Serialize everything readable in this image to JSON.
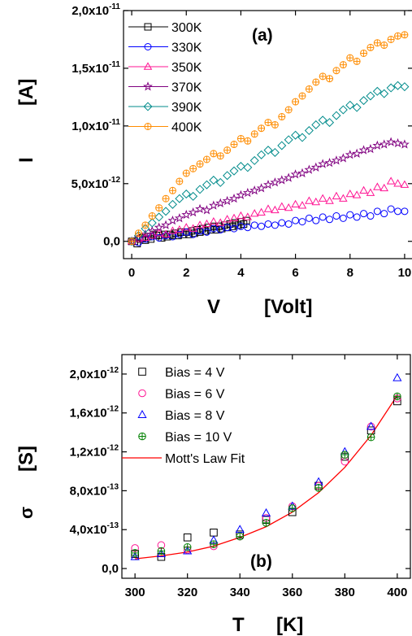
{
  "chart_data": [
    {
      "type": "scatter",
      "panel_label": "(a)",
      "xlabel": "V",
      "xlabel_unit": "[Volt]",
      "ylabel": "I",
      "ylabel_unit": "[A]",
      "xlim": [
        -0.3,
        10.3
      ],
      "ylim": [
        -1.5e-12,
        2e-11
      ],
      "x_ticks": [
        0,
        2,
        4,
        6,
        8,
        10
      ],
      "x_tick_labels": [
        "0",
        "2",
        "4",
        "6",
        "8",
        "10"
      ],
      "y_ticks": [
        0,
        5e-12,
        1e-11,
        1.5e-11,
        2e-11
      ],
      "y_tick_labels": [
        {
          "mant": "0,0",
          "exp": ""
        },
        {
          "mant": "5,0x10",
          "exp": "-12"
        },
        {
          "mant": "1,0x10",
          "exp": "-11"
        },
        {
          "mant": "1,5x10",
          "exp": "-11"
        },
        {
          "mant": "2,0x10",
          "exp": "-11"
        }
      ],
      "legend_position": "top-left",
      "series": [
        {
          "name": "300K",
          "marker": "square",
          "color": "#000000",
          "v_step": 0.1,
          "values": [
            0.0,
            0.0,
            -2e-13,
            2e-13,
            3e-13,
            1e-13,
            4e-13,
            2e-13,
            6e-13,
            5e-13,
            5e-13,
            3e-13,
            6e-13,
            4e-13,
            6e-13,
            5e-13,
            7e-13,
            5e-13,
            8e-13,
            6e-13,
            8e-13,
            6e-13,
            9e-13,
            7e-13,
            1e-12,
            8e-13,
            1.1e-12,
            9e-13,
            1.2e-12,
            1e-12,
            1.3e-12,
            1e-12,
            1.3e-12,
            1.1e-12,
            1.4e-12,
            1.2e-12,
            1.5e-12,
            1.3e-12,
            1.6e-12,
            1.4e-12,
            1.7e-12,
            1.5e-12,
            1.8e-12
          ]
        },
        {
          "name": "330K",
          "marker": "circle",
          "color": "#0000ff",
          "v_step": 0.25,
          "values": [
            0.0,
            -1e-13,
            2e-13,
            4e-13,
            3e-13,
            5e-13,
            4e-13,
            6e-13,
            8e-13,
            6e-13,
            9e-13,
            8e-13,
            1.1e-12,
            1e-12,
            1.2e-12,
            1.1e-12,
            1.3e-12,
            1.2e-12,
            1.4e-12,
            1.3e-12,
            1.5e-12,
            1.4e-12,
            1.6e-12,
            1.5e-12,
            1.8e-12,
            1.7e-12,
            2e-12,
            1.8e-12,
            2.1e-12,
            1.9e-12,
            2.2e-12,
            2e-12,
            2.3e-12,
            2.1e-12,
            2.4e-12,
            2.2e-12,
            2.6e-12,
            2.4e-12,
            2.8e-12,
            2.6e-12,
            2.6e-12
          ]
        },
        {
          "name": "350K",
          "marker": "triangle",
          "color": "#ff1493",
          "v_step": 0.25,
          "values": [
            0.0,
            2e-13,
            3e-13,
            5e-13,
            7e-13,
            6e-13,
            9e-13,
            1e-12,
            1.2e-12,
            1.1e-12,
            1.4e-12,
            1.5e-12,
            1.7e-12,
            1.6e-12,
            1.9e-12,
            2e-12,
            2.2e-12,
            2.1e-12,
            2.4e-12,
            2.5e-12,
            2.8e-12,
            2.7e-12,
            3e-12,
            2.9e-12,
            3.2e-12,
            3.1e-12,
            3.5e-12,
            3.4e-12,
            3.7e-12,
            3.5e-12,
            3.9e-12,
            3.7e-12,
            4.1e-12,
            4e-12,
            4.4e-12,
            4.2e-12,
            4.7e-12,
            4.6e-12,
            5.2e-12,
            5e-12,
            4.9e-12
          ]
        },
        {
          "name": "370K",
          "marker": "star",
          "color": "#800080",
          "v_step": 0.25,
          "values": [
            0.0,
            3e-13,
            6e-13,
            9e-13,
            1.2e-12,
            1.4e-12,
            1.8e-12,
            2e-12,
            2.3e-12,
            2.5e-12,
            2.8e-12,
            2.7e-12,
            3.1e-12,
            3.3e-12,
            3.5e-12,
            3.7e-12,
            4e-12,
            4.2e-12,
            4.4e-12,
            4.6e-12,
            4.9e-12,
            5.1e-12,
            5.3e-12,
            5.5e-12,
            5.8e-12,
            5.9e-12,
            6.2e-12,
            6.4e-12,
            6.7e-12,
            6.8e-12,
            7e-12,
            7.2e-12,
            7.5e-12,
            7.6e-12,
            7.9e-12,
            8e-12,
            8.3e-12,
            8.4e-12,
            8.6e-12,
            8.5e-12,
            8.4e-12
          ]
        },
        {
          "name": "390K",
          "marker": "diamond",
          "color": "#008b8b",
          "v_step": 0.25,
          "values": [
            0.0,
            5e-13,
            1.1e-12,
            1.6e-12,
            2.1e-12,
            2.6e-12,
            3.2e-12,
            3.7e-12,
            4.1e-12,
            3.9e-12,
            4.5e-12,
            4.9e-12,
            5.3e-12,
            5.1e-12,
            5.7e-12,
            6.1e-12,
            6.5e-12,
            6.4e-12,
            7e-12,
            7.5e-12,
            7.9e-12,
            7.7e-12,
            8.3e-12,
            8.8e-12,
            9.2e-12,
            9e-12,
            9.6e-12,
            1.01e-11,
            1.05e-11,
            1.03e-11,
            1.09e-11,
            1.14e-11,
            1.18e-11,
            1.16e-11,
            1.22e-11,
            1.26e-11,
            1.3e-11,
            1.28e-11,
            1.33e-11,
            1.35e-11,
            1.34e-11
          ]
        },
        {
          "name": "400K",
          "marker": "circle-plus",
          "color": "#ff8c00",
          "v_step": 0.25,
          "values": [
            0.0,
            7e-13,
            1.4e-12,
            2.2e-12,
            2.9e-12,
            3.7e-12,
            4.4e-12,
            5.2e-12,
            5.9e-12,
            6.3e-12,
            6.7e-12,
            7.1e-12,
            7.6e-12,
            7.4e-12,
            7.9e-12,
            8.4e-12,
            8.9e-12,
            8.7e-12,
            9.3e-12,
            9.8e-12,
            1.03e-11,
            1.01e-11,
            1.08e-11,
            1.14e-11,
            1.21e-11,
            1.26e-11,
            1.32e-11,
            1.38e-11,
            1.43e-11,
            1.41e-11,
            1.48e-11,
            1.53e-11,
            1.59e-11,
            1.56e-11,
            1.63e-11,
            1.68e-11,
            1.72e-11,
            1.7e-11,
            1.75e-11,
            1.78e-11,
            1.79e-11
          ]
        }
      ]
    },
    {
      "type": "scatter",
      "panel_label": "(b)",
      "xlabel": "T",
      "xlabel_unit": "[K]",
      "ylabel": "σ",
      "ylabel_unit": "[S]",
      "xlim": [
        295,
        405
      ],
      "ylim": [
        -1e-13,
        2.2e-12
      ],
      "x_ticks": [
        300,
        320,
        340,
        360,
        380,
        400
      ],
      "x_tick_labels": [
        "300",
        "320",
        "340",
        "360",
        "380",
        "400"
      ],
      "y_ticks": [
        0,
        4e-13,
        8e-13,
        1.2e-12,
        1.6e-12,
        2e-12
      ],
      "y_tick_labels": [
        {
          "mant": "0,0",
          "exp": ""
        },
        {
          "mant": "4,0x10",
          "exp": "-13"
        },
        {
          "mant": "8,0x10",
          "exp": "-13"
        },
        {
          "mant": "1,2x10",
          "exp": "-12"
        },
        {
          "mant": "1,6x10",
          "exp": "-12"
        },
        {
          "mant": "2,0x10",
          "exp": "-12"
        }
      ],
      "legend_position": "top-left",
      "x": [
        300,
        310,
        320,
        330,
        340,
        350,
        360,
        370,
        380,
        390,
        400
      ],
      "series": [
        {
          "name": "Bias = 4 V",
          "marker": "square",
          "color": "#000000",
          "values": [
            1.5e-13,
            1.2e-13,
            3.2e-13,
            3.7e-13,
            3.5e-13,
            5e-13,
            5.8e-13,
            8.5e-13,
            1.15e-12,
            1.42e-12,
            1.72e-12
          ]
        },
        {
          "name": "Bias = 6 V",
          "marker": "circle",
          "color": "#ff1493",
          "values": [
            2.1e-13,
            2.4e-13,
            1.9e-13,
            2.3e-13,
            3.3e-13,
            5.2e-13,
            6.4e-13,
            8.5e-13,
            1.1e-12,
            1.46e-12,
            1.75e-12
          ]
        },
        {
          "name": "Bias = 8 V",
          "marker": "triangle",
          "color": "#0000ff",
          "values": [
            1.2e-13,
            1.5e-13,
            1.8e-13,
            2.9e-13,
            4e-13,
            5.7e-13,
            6.4e-13,
            8.9e-13,
            1.2e-12,
            1.46e-12,
            1.96e-12
          ]
        },
        {
          "name": "Bias = 10 V",
          "marker": "circle-plus",
          "color": "#008000",
          "values": [
            1.6e-13,
            1.8e-13,
            2.2e-13,
            2.5e-13,
            3.3e-13,
            4.7e-13,
            6.2e-13,
            8.3e-13,
            1.17e-12,
            1.35e-12,
            1.77e-12
          ]
        }
      ],
      "fit": {
        "name": "Mott's Law Fit",
        "color": "#ff0000",
        "x": [
          300,
          310,
          320,
          330,
          340,
          350,
          360,
          370,
          380,
          390,
          400
        ],
        "y": [
          1e-13,
          1.3e-13,
          1.7e-13,
          2.3e-13,
          3.2e-13,
          4.3e-13,
          5.8e-13,
          7.8e-13,
          1.04e-12,
          1.37e-12,
          1.78e-12
        ]
      }
    }
  ]
}
